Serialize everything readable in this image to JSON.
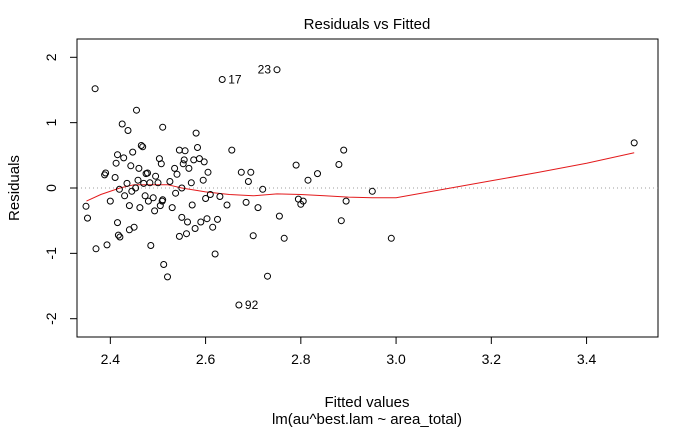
{
  "chart_data": {
    "type": "scatter",
    "title": "Residuals vs Fitted",
    "xlabel": "Fitted values",
    "subtitle": "lm(au^best.lam ~ area_total)",
    "ylabel": "Residuals",
    "xlim": [
      2.33,
      3.55
    ],
    "ylim": [
      -2.28,
      2.28
    ],
    "x_ticks": [
      "2.4",
      "2.6",
      "2.8",
      "3.0",
      "3.2",
      "3.4"
    ],
    "y_ticks": [
      "-2",
      "-1",
      "0",
      "1",
      "2"
    ],
    "reference_line": {
      "y": 0,
      "style": "dotted",
      "color": "#9e9e9e"
    },
    "point_color": "#000000",
    "smooth_color": "#e31a1c",
    "points": [
      {
        "x": 2.349,
        "y": -0.28
      },
      {
        "x": 2.352,
        "y": -0.46
      },
      {
        "x": 2.368,
        "y": 1.52
      },
      {
        "x": 2.37,
        "y": -0.93
      },
      {
        "x": 2.388,
        "y": 0.2
      },
      {
        "x": 2.39,
        "y": 0.23
      },
      {
        "x": 2.393,
        "y": -0.87
      },
      {
        "x": 2.4,
        "y": -0.2
      },
      {
        "x": 2.41,
        "y": 0.16
      },
      {
        "x": 2.412,
        "y": 0.38
      },
      {
        "x": 2.415,
        "y": 0.51
      },
      {
        "x": 2.415,
        "y": -0.53
      },
      {
        "x": 2.417,
        "y": -0.72
      },
      {
        "x": 2.419,
        "y": -0.02
      },
      {
        "x": 2.42,
        "y": -0.75
      },
      {
        "x": 2.425,
        "y": 0.98
      },
      {
        "x": 2.428,
        "y": 0.46
      },
      {
        "x": 2.43,
        "y": -0.12
      },
      {
        "x": 2.435,
        "y": 0.07
      },
      {
        "x": 2.437,
        "y": 0.88
      },
      {
        "x": 2.44,
        "y": -0.27
      },
      {
        "x": 2.44,
        "y": -0.64
      },
      {
        "x": 2.443,
        "y": 0.34
      },
      {
        "x": 2.445,
        "y": -0.05
      },
      {
        "x": 2.447,
        "y": 0.55
      },
      {
        "x": 2.45,
        "y": -0.6
      },
      {
        "x": 2.453,
        "y": 0.0
      },
      {
        "x": 2.455,
        "y": 1.19
      },
      {
        "x": 2.458,
        "y": 0.12
      },
      {
        "x": 2.46,
        "y": 0.3
      },
      {
        "x": 2.462,
        "y": -0.3
      },
      {
        "x": 2.465,
        "y": 0.65
      },
      {
        "x": 2.468,
        "y": 0.63
      },
      {
        "x": 2.47,
        "y": 0.07
      },
      {
        "x": 2.473,
        "y": -0.12
      },
      {
        "x": 2.475,
        "y": 0.22
      },
      {
        "x": 2.478,
        "y": 0.23
      },
      {
        "x": 2.48,
        "y": -0.2
      },
      {
        "x": 2.483,
        "y": 0.08
      },
      {
        "x": 2.485,
        "y": -0.88
      },
      {
        "x": 2.49,
        "y": -0.15
      },
      {
        "x": 2.493,
        "y": -0.35
      },
      {
        "x": 2.495,
        "y": 0.18
      },
      {
        "x": 2.5,
        "y": 0.08
      },
      {
        "x": 2.503,
        "y": 0.45
      },
      {
        "x": 2.505,
        "y": -0.27
      },
      {
        "x": 2.507,
        "y": 0.37
      },
      {
        "x": 2.509,
        "y": -0.2
      },
      {
        "x": 2.51,
        "y": -0.18
      },
      {
        "x": 2.51,
        "y": 0.93
      },
      {
        "x": 2.512,
        "y": -1.17
      },
      {
        "x": 2.52,
        "y": -1.36
      },
      {
        "x": 2.525,
        "y": 0.1
      },
      {
        "x": 2.53,
        "y": -0.3
      },
      {
        "x": 2.535,
        "y": 0.3
      },
      {
        "x": 2.537,
        "y": -0.08
      },
      {
        "x": 2.54,
        "y": 0.21
      },
      {
        "x": 2.545,
        "y": 0.58
      },
      {
        "x": 2.545,
        "y": -0.74
      },
      {
        "x": 2.55,
        "y": 0.0
      },
      {
        "x": 2.55,
        "y": -0.45
      },
      {
        "x": 2.553,
        "y": 0.37
      },
      {
        "x": 2.555,
        "y": 0.43
      },
      {
        "x": 2.557,
        "y": 0.57
      },
      {
        "x": 2.56,
        "y": -0.7
      },
      {
        "x": 2.562,
        "y": -0.52
      },
      {
        "x": 2.565,
        "y": 0.3
      },
      {
        "x": 2.57,
        "y": 0.08
      },
      {
        "x": 2.572,
        "y": -0.26
      },
      {
        "x": 2.575,
        "y": 0.43
      },
      {
        "x": 2.578,
        "y": -0.62
      },
      {
        "x": 2.58,
        "y": 0.84
      },
      {
        "x": 2.583,
        "y": 0.62
      },
      {
        "x": 2.587,
        "y": 0.45
      },
      {
        "x": 2.59,
        "y": -0.52
      },
      {
        "x": 2.595,
        "y": 0.12
      },
      {
        "x": 2.597,
        "y": 0.4
      },
      {
        "x": 2.6,
        "y": -0.16
      },
      {
        "x": 2.603,
        "y": -0.47
      },
      {
        "x": 2.605,
        "y": 0.24
      },
      {
        "x": 2.61,
        "y": -0.1
      },
      {
        "x": 2.615,
        "y": -0.6
      },
      {
        "x": 2.62,
        "y": -1.01
      },
      {
        "x": 2.625,
        "y": -0.48
      },
      {
        "x": 2.63,
        "y": -0.13
      },
      {
        "x": 2.635,
        "y": 1.66
      },
      {
        "x": 2.645,
        "y": -0.26
      },
      {
        "x": 2.655,
        "y": 0.58
      },
      {
        "x": 2.67,
        "y": -1.79
      },
      {
        "x": 2.675,
        "y": 0.24
      },
      {
        "x": 2.685,
        "y": -0.22
      },
      {
        "x": 2.69,
        "y": 0.1
      },
      {
        "x": 2.695,
        "y": 0.24
      },
      {
        "x": 2.7,
        "y": -0.73
      },
      {
        "x": 2.71,
        "y": -0.3
      },
      {
        "x": 2.72,
        "y": -0.02
      },
      {
        "x": 2.73,
        "y": -1.35
      },
      {
        "x": 2.75,
        "y": 1.81
      },
      {
        "x": 2.755,
        "y": -0.43
      },
      {
        "x": 2.765,
        "y": -0.77
      },
      {
        "x": 2.79,
        "y": 0.35
      },
      {
        "x": 2.795,
        "y": -0.17
      },
      {
        "x": 2.8,
        "y": -0.25
      },
      {
        "x": 2.805,
        "y": -0.2
      },
      {
        "x": 2.815,
        "y": 0.12
      },
      {
        "x": 2.835,
        "y": 0.22
      },
      {
        "x": 2.88,
        "y": 0.36
      },
      {
        "x": 2.885,
        "y": -0.5
      },
      {
        "x": 2.89,
        "y": 0.58
      },
      {
        "x": 2.895,
        "y": -0.2
      },
      {
        "x": 2.95,
        "y": -0.05
      },
      {
        "x": 2.99,
        "y": -0.77
      },
      {
        "x": 3.5,
        "y": 0.69
      }
    ],
    "point_labels": [
      {
        "x": 2.75,
        "y": 1.81,
        "label": "23",
        "side": "left"
      },
      {
        "x": 2.635,
        "y": 1.66,
        "label": "17",
        "side": "right"
      },
      {
        "x": 2.67,
        "y": -1.79,
        "label": "92",
        "side": "right"
      }
    ],
    "smooth": [
      {
        "x": 2.35,
        "y": -0.2
      },
      {
        "x": 2.38,
        "y": -0.1
      },
      {
        "x": 2.42,
        "y": 0.0
      },
      {
        "x": 2.45,
        "y": 0.05
      },
      {
        "x": 2.48,
        "y": 0.05
      },
      {
        "x": 2.52,
        "y": 0.05
      },
      {
        "x": 2.55,
        "y": 0.0
      },
      {
        "x": 2.6,
        "y": -0.06
      },
      {
        "x": 2.65,
        "y": -0.1
      },
      {
        "x": 2.7,
        "y": -0.12
      },
      {
        "x": 2.75,
        "y": -0.09
      },
      {
        "x": 2.8,
        "y": -0.1
      },
      {
        "x": 2.85,
        "y": -0.12
      },
      {
        "x": 2.9,
        "y": -0.14
      },
      {
        "x": 2.95,
        "y": -0.15
      },
      {
        "x": 3.0,
        "y": -0.15
      },
      {
        "x": 3.1,
        "y": -0.02
      },
      {
        "x": 3.2,
        "y": 0.11
      },
      {
        "x": 3.3,
        "y": 0.24
      },
      {
        "x": 3.4,
        "y": 0.38
      },
      {
        "x": 3.5,
        "y": 0.54
      }
    ]
  }
}
